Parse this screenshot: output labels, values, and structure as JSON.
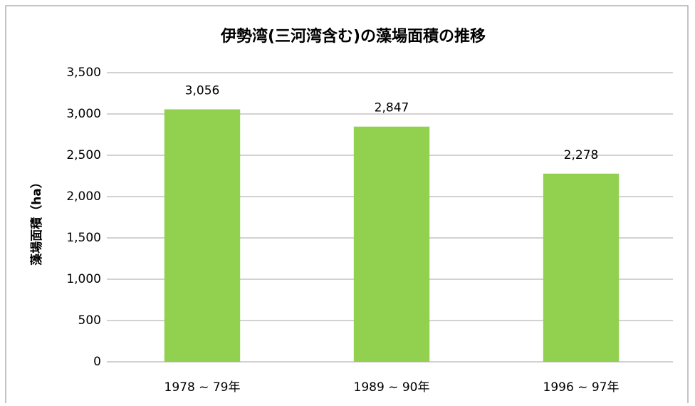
{
  "chart_data": {
    "type": "bar",
    "title": "伊勢湾(三河湾含む)の藻場面積の推移",
    "y_label": "藻場面積（ha）",
    "categories": [
      "1978 ~ 79年",
      "1989 ~ 90年",
      "1996 ~ 97年"
    ],
    "values": [
      3056,
      2847,
      2278
    ],
    "value_labels": [
      "3,056",
      "2,847",
      "2,278"
    ],
    "color": "#92d050",
    "ylim": [
      0,
      3500
    ],
    "yticks": [
      0,
      500,
      {
        "value": 1000,
        "label": "1,000"
      },
      {
        "value": 1500,
        "label": "1,500"
      },
      {
        "value": 2000,
        "label": "2,000"
      },
      {
        "value": 2500,
        "label": "2,500"
      },
      {
        "value": 3000,
        "label": "3,000"
      },
      {
        "value": 3500,
        "label": "3,500"
      }
    ],
    "grid": true
  }
}
